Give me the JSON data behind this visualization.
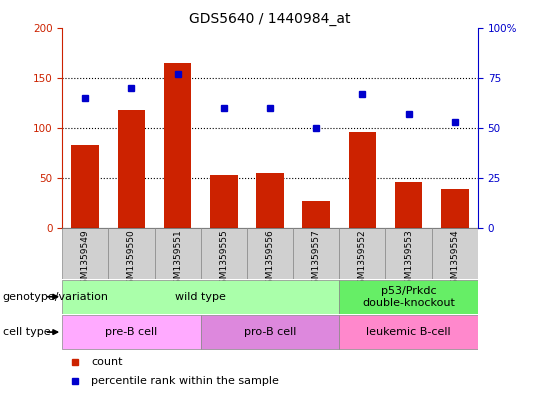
{
  "title": "GDS5640 / 1440984_at",
  "samples": [
    "GSM1359549",
    "GSM1359550",
    "GSM1359551",
    "GSM1359555",
    "GSM1359556",
    "GSM1359557",
    "GSM1359552",
    "GSM1359553",
    "GSM1359554"
  ],
  "counts": [
    83,
    118,
    165,
    53,
    55,
    27,
    96,
    46,
    39
  ],
  "percentiles": [
    65,
    70,
    77,
    60,
    60,
    50,
    67,
    57,
    53
  ],
  "left_ylim": [
    0,
    200
  ],
  "right_ylim": [
    0,
    100
  ],
  "left_yticks": [
    0,
    50,
    100,
    150,
    200
  ],
  "right_yticks": [
    0,
    25,
    50,
    75,
    100
  ],
  "right_yticklabels": [
    "0",
    "25",
    "50",
    "75",
    "100%"
  ],
  "bar_color": "#cc2200",
  "dot_color": "#0000cc",
  "bg_color": "#ffffff",
  "genotype_groups": [
    {
      "label": "wild type",
      "start": 0,
      "end": 6,
      "color": "#aaffaa"
    },
    {
      "label": "p53/Prkdc\ndouble-knockout",
      "start": 6,
      "end": 9,
      "color": "#66ee66"
    }
  ],
  "cell_type_groups": [
    {
      "label": "pre-B cell",
      "start": 0,
      "end": 3,
      "color": "#ffaaff"
    },
    {
      "label": "pro-B cell",
      "start": 3,
      "end": 6,
      "color": "#dd88dd"
    },
    {
      "label": "leukemic B-cell",
      "start": 6,
      "end": 9,
      "color": "#ff88cc"
    }
  ],
  "legend_count_label": "count",
  "legend_percentile_label": "percentile rank within the sample",
  "left_axis_color": "#cc2200",
  "right_axis_color": "#0000cc",
  "title_fontsize": 10,
  "tick_fontsize": 7.5,
  "sample_fontsize": 6.5,
  "label_fontsize": 8
}
